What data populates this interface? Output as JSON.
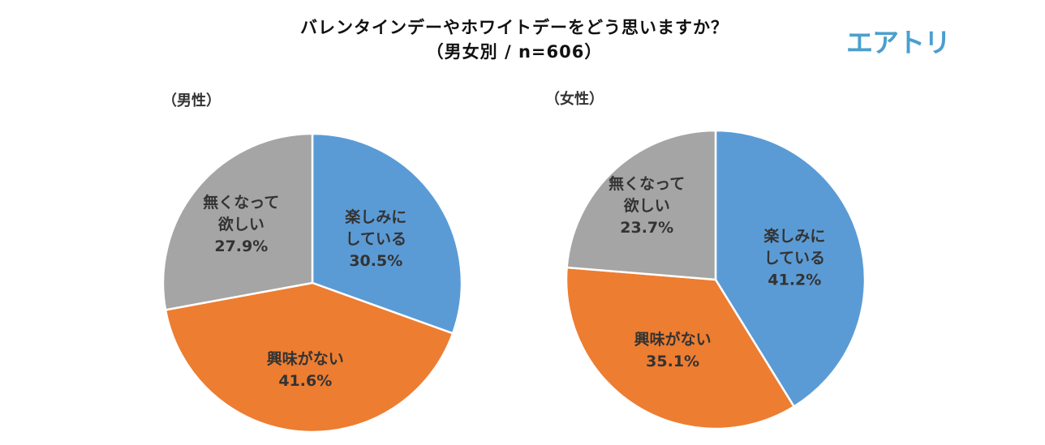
{
  "header": {
    "title": "バレンタインデーやホワイトデーをどう思いますか？",
    "subtitle": "（男女別 / n=606）",
    "logo": "エアトリ"
  },
  "colors": {
    "enjoy": "#5B9BD5",
    "no_interest": "#ED7D31",
    "want_gone": "#A5A5A5"
  },
  "chart_data": [
    {
      "type": "pie",
      "title": "（男性）",
      "slices": [
        {
          "label": [
            "楽しみに",
            "している"
          ],
          "value": 30.5,
          "value_label": "30.5%",
          "color": "#5B9BD5"
        },
        {
          "label": [
            "興味がない"
          ],
          "value": 41.6,
          "value_label": "41.6%",
          "color": "#ED7D31"
        },
        {
          "label": [
            "無くなって",
            "欲しい"
          ],
          "value": 27.9,
          "value_label": "27.9%",
          "color": "#A5A5A5"
        }
      ]
    },
    {
      "type": "pie",
      "title": "（女性）",
      "slices": [
        {
          "label": [
            "楽しみに",
            "している"
          ],
          "value": 41.2,
          "value_label": "41.2%",
          "color": "#5B9BD5"
        },
        {
          "label": [
            "興味がない"
          ],
          "value": 35.1,
          "value_label": "35.1%",
          "color": "#ED7D31"
        },
        {
          "label": [
            "無くなって",
            "欲しい"
          ],
          "value": 23.7,
          "value_label": "23.7%",
          "color": "#A5A5A5"
        }
      ]
    }
  ]
}
